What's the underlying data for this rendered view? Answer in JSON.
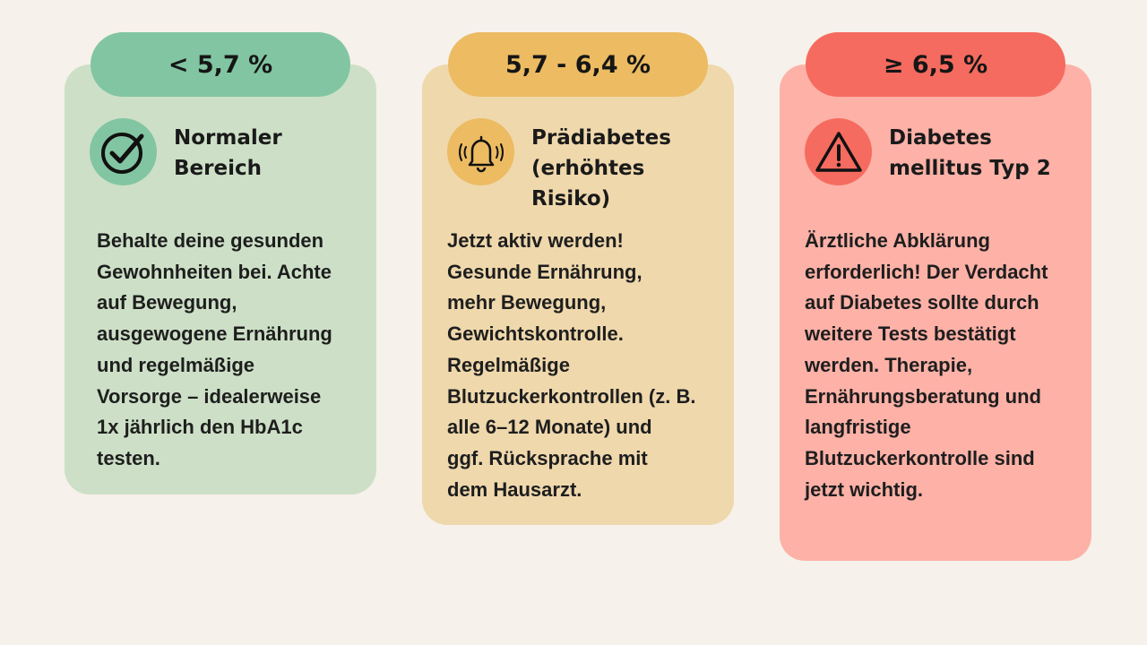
{
  "cards": [
    {
      "range_label": "< 5,7 %",
      "icon": "check-circle-icon",
      "heading": "Normaler\nBereich",
      "text": "Behalte deine gesunden\nGewohnheiten bei. Achte\nauf Bewegung,\nausgewogene Ernährung\nund regelmäßige\nVorsorge – idealerweise\n1x jährlich den HbA1c\ntesten.",
      "color_card": "#cde0c7",
      "color_accent": "#82c5a2"
    },
    {
      "range_label": "5,7 - 6,4 %",
      "icon": "ringing-bell-icon",
      "heading": "Prädiabetes\n(erhöhtes\nRisiko)",
      "text": "Jetzt aktiv werden!\nGesunde Ernährung,\nmehr Bewegung,\nGewichtskontrolle.\nRegelmäßige\nBlutzuckerkontrollen (z. B.\nalle 6–12 Monate) und\nggf. Rücksprache mit\ndem Hausarzt.",
      "color_card": "#efd8ac",
      "color_accent": "#ecbb62"
    },
    {
      "range_label": "≥ 6,5 %",
      "icon": "warning-triangle-icon",
      "heading": "Diabetes\nmellitus Typ 2",
      "text": "Ärztliche Abklärung\nerforderlich! Der Verdacht\nauf Diabetes sollte durch\nweitere Tests bestätigt\nwerden. Therapie,\nErnährungsberatung und\nlangfristige\nBlutzuckerkontrolle sind\njetzt wichtig.",
      "color_card": "#fdb1a7",
      "color_accent": "#f66b5f"
    }
  ]
}
